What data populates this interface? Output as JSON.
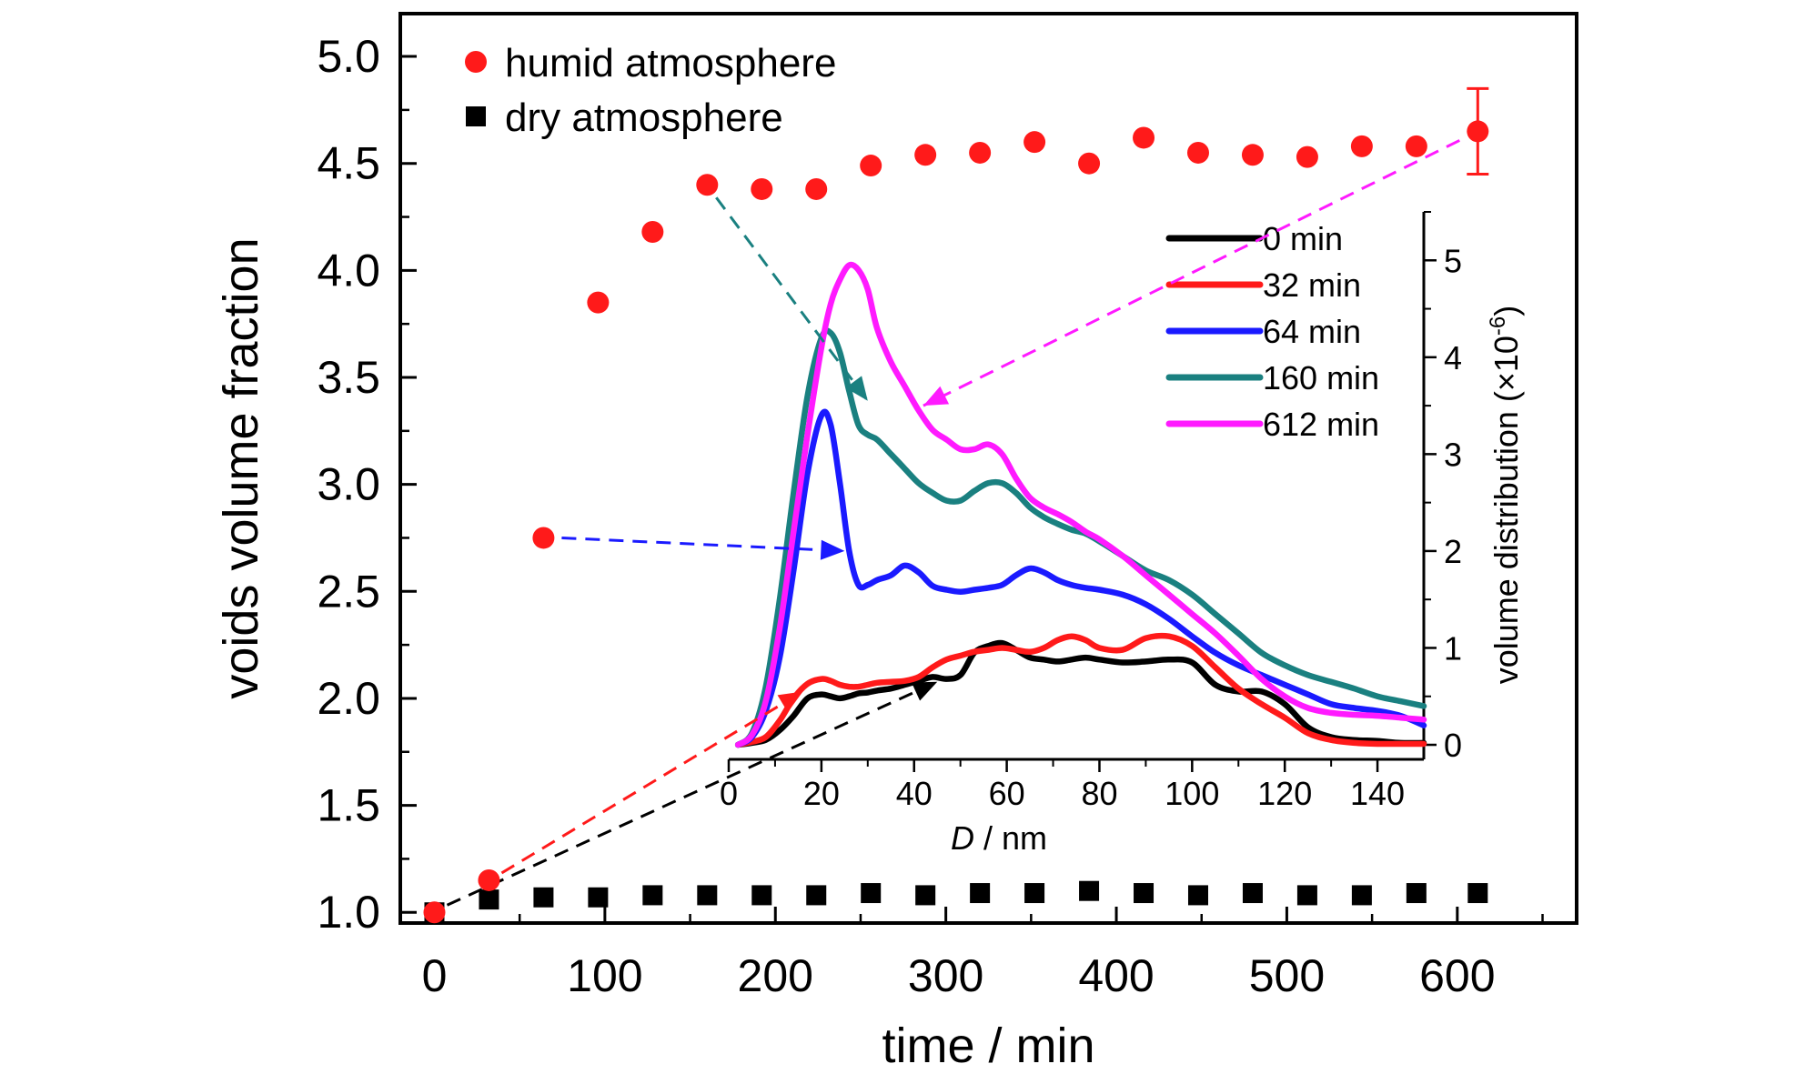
{
  "chart_data": [
    {
      "type": "scatter",
      "xlabel": "time / min",
      "ylabel": "voids volume fraction",
      "xlim": [
        -20,
        670
      ],
      "ylim": [
        0.95,
        5.2
      ],
      "xticks": [
        "0",
        "100",
        "200",
        "300",
        "400",
        "500",
        "600"
      ],
      "yticks": [
        "1.0",
        "1.5",
        "2.0",
        "2.5",
        "3.0",
        "3.5",
        "4.0",
        "4.5",
        "5.0"
      ],
      "legend_placement": "top-left",
      "series": [
        {
          "name": "humid atmosphere",
          "marker": "circle",
          "color": "#ff1a1a",
          "x": [
            0,
            32,
            64,
            96,
            128,
            160,
            192,
            224,
            256,
            288,
            320,
            352,
            384,
            416,
            448,
            480,
            512,
            544,
            576,
            612
          ],
          "y": [
            1.0,
            1.15,
            2.75,
            3.85,
            4.18,
            4.4,
            4.38,
            4.38,
            4.49,
            4.54,
            4.55,
            4.6,
            4.5,
            4.62,
            4.55,
            4.54,
            4.53,
            4.58,
            4.58,
            4.65
          ],
          "error_bar": {
            "x": 612,
            "y": 4.65,
            "plus_minus": 0.2
          }
        },
        {
          "name": "dry atmosphere",
          "marker": "square",
          "color": "#000000",
          "x": [
            0,
            32,
            64,
            96,
            128,
            160,
            192,
            224,
            256,
            288,
            320,
            352,
            384,
            416,
            448,
            480,
            512,
            544,
            576,
            612
          ],
          "y": [
            1.0,
            1.06,
            1.07,
            1.07,
            1.08,
            1.08,
            1.08,
            1.08,
            1.09,
            1.08,
            1.09,
            1.09,
            1.1,
            1.09,
            1.08,
            1.09,
            1.08,
            1.08,
            1.09,
            1.09
          ]
        }
      ]
    },
    {
      "type": "line",
      "xlabel_italic": "D",
      "xlabel_rest": " / nm",
      "ylabel": "volume distribution (×10",
      "ylabel_sup": "-6",
      "ylabel_close": ")",
      "xlim": [
        0,
        150
      ],
      "ylim": [
        -0.15,
        5.5
      ],
      "xticks": [
        "0",
        "20",
        "40",
        "60",
        "80",
        "100",
        "120",
        "140"
      ],
      "yticks": [
        "0",
        "1",
        "2",
        "3",
        "4",
        "5"
      ],
      "legend_placement": "top-right",
      "x": [
        2,
        5,
        8,
        11,
        14,
        17,
        20,
        22,
        24,
        26,
        28,
        30,
        32,
        35,
        38,
        41,
        44,
        47,
        50,
        53,
        56,
        59,
        62,
        65,
        68,
        71,
        74,
        77,
        80,
        85,
        90,
        95,
        100,
        105,
        110,
        115,
        120,
        125,
        130,
        135,
        140,
        145,
        150
      ],
      "series": [
        {
          "name": "0 min",
          "color": "#000000",
          "values": [
            0.0,
            0.02,
            0.05,
            0.15,
            0.3,
            0.48,
            0.52,
            0.5,
            0.48,
            0.5,
            0.53,
            0.54,
            0.56,
            0.58,
            0.62,
            0.66,
            0.7,
            0.68,
            0.72,
            0.95,
            1.02,
            1.05,
            0.98,
            0.9,
            0.88,
            0.86,
            0.88,
            0.9,
            0.88,
            0.85,
            0.86,
            0.88,
            0.85,
            0.62,
            0.55,
            0.55,
            0.42,
            0.18,
            0.08,
            0.05,
            0.04,
            0.02,
            0.02
          ]
        },
        {
          "name": "32 min",
          "color": "#ff1a1a",
          "values": [
            0.0,
            0.03,
            0.08,
            0.25,
            0.48,
            0.63,
            0.68,
            0.66,
            0.62,
            0.6,
            0.6,
            0.62,
            0.64,
            0.65,
            0.66,
            0.7,
            0.8,
            0.88,
            0.92,
            0.96,
            0.98,
            1.0,
            0.98,
            0.96,
            1.0,
            1.08,
            1.12,
            1.08,
            1.0,
            0.98,
            1.1,
            1.12,
            1.02,
            0.8,
            0.58,
            0.42,
            0.28,
            0.12,
            0.05,
            0.02,
            0.01,
            0.01,
            0.01
          ]
        },
        {
          "name": "64 min",
          "color": "#1a1aff",
          "values": [
            0.0,
            0.08,
            0.35,
            0.9,
            1.8,
            2.8,
            3.4,
            3.3,
            2.7,
            2.0,
            1.65,
            1.65,
            1.7,
            1.75,
            1.85,
            1.78,
            1.64,
            1.6,
            1.58,
            1.6,
            1.62,
            1.65,
            1.75,
            1.82,
            1.78,
            1.7,
            1.65,
            1.62,
            1.6,
            1.55,
            1.45,
            1.3,
            1.12,
            0.95,
            0.82,
            0.72,
            0.62,
            0.52,
            0.42,
            0.38,
            0.35,
            0.3,
            0.2
          ]
        },
        {
          "name": "160 min",
          "color": "#1a8080",
          "values": [
            0.0,
            0.12,
            0.6,
            1.5,
            2.6,
            3.6,
            4.2,
            4.25,
            4.05,
            3.65,
            3.3,
            3.2,
            3.15,
            3.0,
            2.85,
            2.7,
            2.6,
            2.52,
            2.52,
            2.62,
            2.7,
            2.7,
            2.6,
            2.45,
            2.35,
            2.28,
            2.22,
            2.18,
            2.1,
            1.95,
            1.8,
            1.7,
            1.55,
            1.35,
            1.15,
            0.95,
            0.82,
            0.72,
            0.65,
            0.58,
            0.5,
            0.45,
            0.4
          ]
        },
        {
          "name": "612 min",
          "color": "#ff1aff",
          "values": [
            0.0,
            0.1,
            0.45,
            1.2,
            2.2,
            3.2,
            4.1,
            4.55,
            4.8,
            4.95,
            4.9,
            4.7,
            4.3,
            3.95,
            3.7,
            3.45,
            3.25,
            3.15,
            3.05,
            3.05,
            3.1,
            3.0,
            2.75,
            2.55,
            2.45,
            2.38,
            2.3,
            2.2,
            2.12,
            1.95,
            1.75,
            1.55,
            1.35,
            1.15,
            0.92,
            0.68,
            0.5,
            0.38,
            0.33,
            0.31,
            0.3,
            0.28,
            0.26
          ]
        }
      ]
    }
  ],
  "annotations": [
    {
      "from_series": "humid atmosphere",
      "from_x": 32,
      "to_curve": "32 min",
      "color": "#ff1a1a"
    },
    {
      "from_series": "dry atmosphere",
      "from_x": 0,
      "to_curve": "0 min",
      "color": "#000000"
    },
    {
      "from_series": "humid atmosphere",
      "from_x": 64,
      "to_curve": "64 min",
      "color": "#1a1aff"
    },
    {
      "from_series": "humid atmosphere",
      "from_x": 160,
      "to_curve": "160 min",
      "color": "#1a8080"
    },
    {
      "from_series": "humid atmosphere",
      "from_x": 612,
      "to_curve": "612 min",
      "color": "#ff1aff"
    }
  ]
}
